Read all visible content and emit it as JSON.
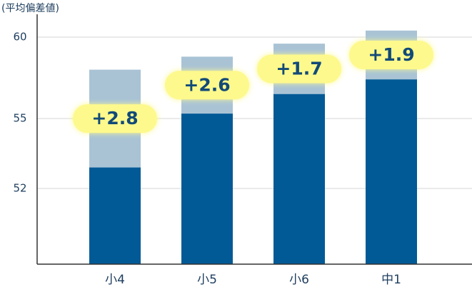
{
  "chart_data": {
    "type": "bar",
    "y_label": "(平均偏差値)",
    "categories": [
      "小4",
      "小5",
      "小6",
      "中1"
    ],
    "series": [
      {
        "color": "#a9c3d5",
        "values": [
          58.0,
          58.8,
          59.6,
          60.4
        ]
      },
      {
        "color": "#015a96",
        "values": [
          52.9,
          55.3,
          56.5,
          57.4
        ]
      }
    ],
    "annotations": [
      "+2.8",
      "+2.6",
      "+1.7",
      "+1.9"
    ],
    "ylim": [
      49,
      61
    ],
    "yticks": [
      52,
      55,
      60
    ],
    "grid": true
  }
}
